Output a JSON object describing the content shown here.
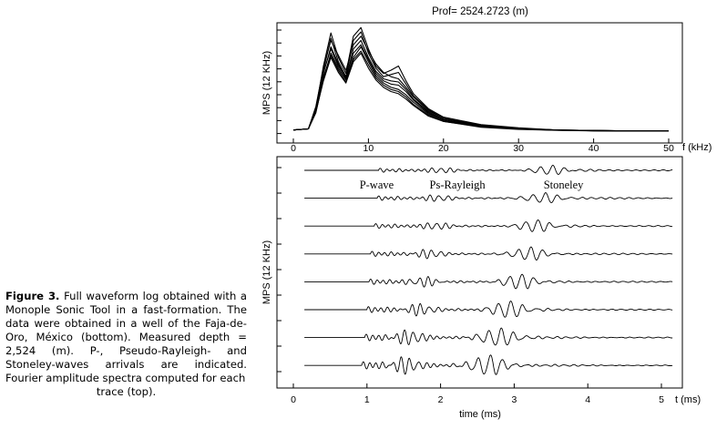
{
  "caption": {
    "label": "Figure 3.",
    "text": "Full waveform log obtained with a Monople Sonic Tool in a fast-formation. The data were obtained in a well of the Faja-de-Oro, México (bottom). Measured depth = 2,524 (m). P-, Pseudo-Rayleigh- and Stoneley-waves arrivals are indicated. Fourier amplitude spectra computed for each",
    "last_line": "trace (top)."
  },
  "chart_data": [
    {
      "type": "line",
      "title": "Prof= 2524.2723 (m)",
      "ylabel": "MPS (12 KHz)",
      "xlabel": "f (kHz)",
      "xlim": [
        0,
        50
      ],
      "x_ticks": [
        "0",
        "10",
        "20",
        "30",
        "40",
        "50"
      ],
      "y_tick_count": 9,
      "grid": false,
      "series_count": 8,
      "x": [
        0,
        2,
        3,
        4,
        5,
        6,
        7,
        8,
        9,
        10,
        11,
        12,
        13,
        14,
        15,
        16,
        18,
        20,
        25,
        30,
        35,
        40,
        45,
        50
      ],
      "series": [
        {
          "values": [
            0.02,
            0.03,
            0.22,
            0.62,
            0.93,
            0.7,
            0.55,
            0.9,
            0.98,
            0.78,
            0.62,
            0.55,
            0.58,
            0.62,
            0.48,
            0.36,
            0.22,
            0.14,
            0.07,
            0.04,
            0.02,
            0.015,
            0.01,
            0.01
          ]
        },
        {
          "values": [
            0.02,
            0.03,
            0.2,
            0.58,
            0.88,
            0.66,
            0.52,
            0.86,
            0.94,
            0.74,
            0.6,
            0.52,
            0.54,
            0.56,
            0.45,
            0.34,
            0.21,
            0.13,
            0.065,
            0.035,
            0.02,
            0.015,
            0.01,
            0.01
          ]
        },
        {
          "values": [
            0.02,
            0.03,
            0.24,
            0.6,
            0.86,
            0.72,
            0.58,
            0.82,
            0.9,
            0.76,
            0.64,
            0.56,
            0.52,
            0.5,
            0.42,
            0.33,
            0.2,
            0.13,
            0.06,
            0.035,
            0.02,
            0.015,
            0.01,
            0.01
          ]
        },
        {
          "values": [
            0.02,
            0.03,
            0.21,
            0.55,
            0.8,
            0.64,
            0.5,
            0.78,
            0.86,
            0.7,
            0.57,
            0.5,
            0.48,
            0.47,
            0.4,
            0.31,
            0.19,
            0.12,
            0.06,
            0.03,
            0.02,
            0.015,
            0.01,
            0.01
          ]
        },
        {
          "values": [
            0.02,
            0.03,
            0.22,
            0.56,
            0.78,
            0.62,
            0.51,
            0.74,
            0.82,
            0.68,
            0.55,
            0.48,
            0.45,
            0.44,
            0.38,
            0.3,
            0.18,
            0.11,
            0.055,
            0.03,
            0.02,
            0.012,
            0.01,
            0.01
          ]
        },
        {
          "values": [
            0.02,
            0.03,
            0.18,
            0.5,
            0.74,
            0.6,
            0.49,
            0.7,
            0.8,
            0.66,
            0.53,
            0.46,
            0.42,
            0.4,
            0.35,
            0.28,
            0.17,
            0.11,
            0.05,
            0.03,
            0.018,
            0.012,
            0.01,
            0.01
          ]
        },
        {
          "values": [
            0.02,
            0.03,
            0.2,
            0.52,
            0.72,
            0.58,
            0.47,
            0.68,
            0.76,
            0.63,
            0.51,
            0.44,
            0.4,
            0.38,
            0.33,
            0.26,
            0.16,
            0.1,
            0.05,
            0.028,
            0.018,
            0.012,
            0.01,
            0.01
          ]
        },
        {
          "values": [
            0.02,
            0.03,
            0.19,
            0.48,
            0.7,
            0.56,
            0.46,
            0.66,
            0.74,
            0.6,
            0.49,
            0.42,
            0.38,
            0.36,
            0.31,
            0.25,
            0.15,
            0.1,
            0.045,
            0.025,
            0.016,
            0.011,
            0.01,
            0.01
          ]
        }
      ]
    },
    {
      "type": "line",
      "ylabel": "MPS (12 KHz)",
      "xlabel": "time (ms)",
      "x_unit_label": "t (ms)",
      "xlim": [
        0,
        5
      ],
      "x_ticks": [
        "0",
        "1",
        "2",
        "3",
        "4",
        "5"
      ],
      "y_tick_count": 9,
      "grid": false,
      "trace_count": 8,
      "traces": [
        {
          "onset": 1.16,
          "p_amp": 0.09,
          "r_time": 1.98,
          "r_amp": 0.14,
          "s_time": 3.5,
          "s_amp": 0.24
        },
        {
          "onset": 1.14,
          "p_amp": 0.1,
          "r_time": 1.95,
          "r_amp": 0.16,
          "s_time": 3.4,
          "s_amp": 0.28
        },
        {
          "onset": 1.1,
          "p_amp": 0.11,
          "r_time": 1.92,
          "r_amp": 0.19,
          "s_time": 3.3,
          "s_amp": 0.32
        },
        {
          "onset": 1.05,
          "p_amp": 0.12,
          "r_time": 1.85,
          "r_amp": 0.22,
          "s_time": 3.2,
          "s_amp": 0.36
        },
        {
          "onset": 1.03,
          "p_amp": 0.13,
          "r_time": 1.8,
          "r_amp": 0.26,
          "s_time": 3.08,
          "s_amp": 0.4
        },
        {
          "onset": 1.0,
          "p_amp": 0.15,
          "r_time": 1.7,
          "r_amp": 0.32,
          "s_time": 2.93,
          "s_amp": 0.46
        },
        {
          "onset": 0.97,
          "p_amp": 0.17,
          "r_time": 1.6,
          "r_amp": 0.4,
          "s_time": 2.8,
          "s_amp": 0.52
        },
        {
          "onset": 0.93,
          "p_amp": 0.19,
          "r_time": 1.55,
          "r_amp": 0.46,
          "s_time": 2.65,
          "s_amp": 0.58
        }
      ],
      "annotations": [
        {
          "text": "P-wave",
          "t": 0.9
        },
        {
          "text": "Ps-Rayleigh",
          "t": 1.85
        },
        {
          "text": "Stoneley",
          "t": 3.4
        }
      ]
    }
  ]
}
